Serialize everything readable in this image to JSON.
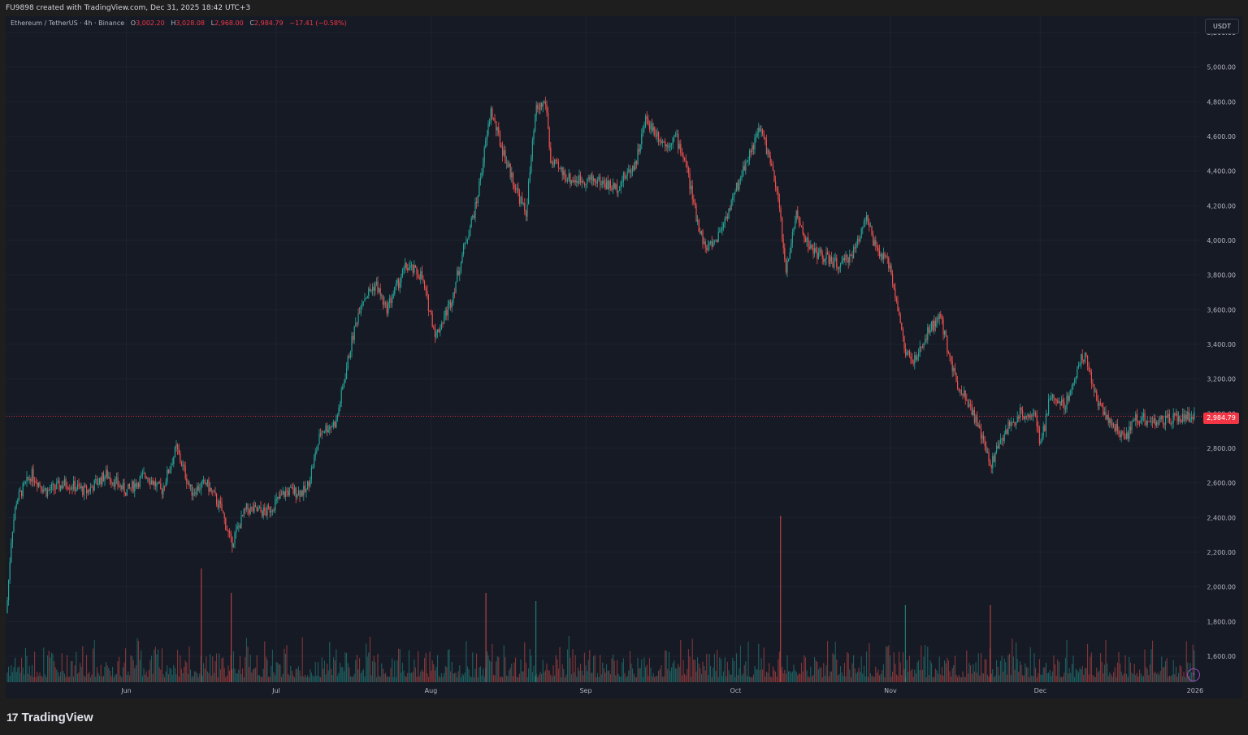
{
  "header": {
    "attribution": "FU9898 created with TradingView.com, Dec 31, 2025 18:42 UTC+3"
  },
  "legend": {
    "symbol": "Ethereum / TetherUS · 4h · Binance",
    "open_label": "O",
    "open": "3,002.20",
    "high_label": "H",
    "high": "3,028.08",
    "low_label": "L",
    "low": "2,968.00",
    "close_label": "C",
    "close": "2,984.79",
    "change": "−17.41 (−0.58%)"
  },
  "axis": {
    "currency": "USDT",
    "last_price": "2,984.79"
  },
  "footer": {
    "brand": "TradingView",
    "logo_mark": "17"
  },
  "colors": {
    "up": "#26a69a",
    "down": "#ef5350",
    "background": "#161a25",
    "grid": "#1f2330",
    "price_line": "#f23645"
  },
  "icons": {
    "bolt": "lightning-icon"
  },
  "chart_data": {
    "type": "candlestick",
    "symbol": "Ethereum / TetherUS",
    "timeframe": "4h",
    "exchange": "Binance",
    "currency": "USDT",
    "y_ticks": [
      1600,
      1800,
      2000,
      2200,
      2400,
      2600,
      2800,
      3000,
      3200,
      3400,
      3600,
      3800,
      4000,
      4200,
      4400,
      4600,
      4800,
      5000,
      5200
    ],
    "y_tick_labels": [
      "1,600.00",
      "1,800.00",
      "2,000.00",
      "2,200.00",
      "2,400.00",
      "2,600.00",
      "2,800.00",
      "3,000.00",
      "3,200.00",
      "3,400.00",
      "3,600.00",
      "3,800.00",
      "4,000.00",
      "4,200.00",
      "4,400.00",
      "4,600.00",
      "4,800.00",
      "5,000.00",
      "5,200.00"
    ],
    "ylim": [
      1450,
      5200
    ],
    "x_range": [
      "2025-05-08",
      "2026-01-02"
    ],
    "x_ticks": [
      {
        "label": "Jun",
        "date": "2025-06-01"
      },
      {
        "label": "Jul",
        "date": "2025-07-01"
      },
      {
        "label": "Aug",
        "date": "2025-08-01"
      },
      {
        "label": "Sep",
        "date": "2025-09-01"
      },
      {
        "label": "Oct",
        "date": "2025-10-01"
      },
      {
        "label": "Nov",
        "date": "2025-11-01"
      },
      {
        "label": "Dec",
        "date": "2025-12-01"
      },
      {
        "label": "2026",
        "date": "2026-01-01"
      }
    ],
    "price_path": [
      [
        "2025-05-08",
        1850
      ],
      [
        "2025-05-09",
        2300
      ],
      [
        "2025-05-10",
        2500
      ],
      [
        "2025-05-13",
        2650
      ],
      [
        "2025-05-16",
        2550
      ],
      [
        "2025-05-20",
        2600
      ],
      [
        "2025-05-24",
        2550
      ],
      [
        "2025-05-28",
        2650
      ],
      [
        "2025-06-01",
        2550
      ],
      [
        "2025-06-05",
        2650
      ],
      [
        "2025-06-08",
        2550
      ],
      [
        "2025-06-11",
        2800
      ],
      [
        "2025-06-14",
        2550
      ],
      [
        "2025-06-17",
        2600
      ],
      [
        "2025-06-20",
        2450
      ],
      [
        "2025-06-22",
        2250
      ],
      [
        "2025-06-25",
        2450
      ],
      [
        "2025-06-29",
        2430
      ],
      [
        "2025-07-03",
        2550
      ],
      [
        "2025-07-07",
        2550
      ],
      [
        "2025-07-10",
        2900
      ],
      [
        "2025-07-13",
        2950
      ],
      [
        "2025-07-16",
        3400
      ],
      [
        "2025-07-18",
        3650
      ],
      [
        "2025-07-21",
        3750
      ],
      [
        "2025-07-23",
        3600
      ],
      [
        "2025-07-27",
        3850
      ],
      [
        "2025-07-30",
        3800
      ],
      [
        "2025-08-02",
        3450
      ],
      [
        "2025-08-05",
        3650
      ],
      [
        "2025-08-08",
        4000
      ],
      [
        "2025-08-10",
        4200
      ],
      [
        "2025-08-13",
        4750
      ],
      [
        "2025-08-15",
        4550
      ],
      [
        "2025-08-18",
        4300
      ],
      [
        "2025-08-20",
        4150
      ],
      [
        "2025-08-22",
        4750
      ],
      [
        "2025-08-24",
        4800
      ],
      [
        "2025-08-25",
        4450
      ],
      [
        "2025-08-29",
        4350
      ],
      [
        "2025-09-03",
        4350
      ],
      [
        "2025-09-07",
        4300
      ],
      [
        "2025-09-11",
        4450
      ],
      [
        "2025-09-13",
        4700
      ],
      [
        "2025-09-17",
        4550
      ],
      [
        "2025-09-19",
        4600
      ],
      [
        "2025-09-21",
        4450
      ],
      [
        "2025-09-23",
        4150
      ],
      [
        "2025-09-25",
        3950
      ],
      [
        "2025-09-27",
        4000
      ],
      [
        "2025-09-30",
        4200
      ],
      [
        "2025-10-03",
        4450
      ],
      [
        "2025-10-06",
        4650
      ],
      [
        "2025-10-08",
        4450
      ],
      [
        "2025-10-10",
        4150
      ],
      [
        "2025-10-11",
        3800
      ],
      [
        "2025-10-13",
        4150
      ],
      [
        "2025-10-16",
        3950
      ],
      [
        "2025-10-19",
        3900
      ],
      [
        "2025-10-22",
        3850
      ],
      [
        "2025-10-25",
        3950
      ],
      [
        "2025-10-27",
        4150
      ],
      [
        "2025-10-29",
        3950
      ],
      [
        "2025-11-01",
        3850
      ],
      [
        "2025-11-04",
        3350
      ],
      [
        "2025-11-06",
        3300
      ],
      [
        "2025-11-09",
        3500
      ],
      [
        "2025-11-11",
        3550
      ],
      [
        "2025-11-14",
        3200
      ],
      [
        "2025-11-17",
        3050
      ],
      [
        "2025-11-20",
        2800
      ],
      [
        "2025-11-21",
        2700
      ],
      [
        "2025-11-24",
        2900
      ],
      [
        "2025-11-27",
        3000
      ],
      [
        "2025-11-30",
        3000
      ],
      [
        "2025-12-01",
        2800
      ],
      [
        "2025-12-03",
        3100
      ],
      [
        "2025-12-06",
        3050
      ],
      [
        "2025-12-09",
        3300
      ],
      [
        "2025-12-10",
        3350
      ],
      [
        "2025-12-12",
        3100
      ],
      [
        "2025-12-15",
        2950
      ],
      [
        "2025-12-18",
        2850
      ],
      [
        "2025-12-20",
        2980
      ],
      [
        "2025-12-24",
        2950
      ],
      [
        "2025-12-28",
        2970
      ],
      [
        "2025-12-31",
        2985
      ]
    ],
    "volume_spikes": [
      [
        "2025-06-16",
        "down"
      ],
      [
        "2025-06-22",
        "down"
      ],
      [
        "2025-08-12",
        "down"
      ],
      [
        "2025-08-22",
        "up"
      ],
      [
        "2025-10-10",
        "down"
      ],
      [
        "2025-11-04",
        "up"
      ],
      [
        "2025-11-21",
        "down"
      ]
    ]
  }
}
